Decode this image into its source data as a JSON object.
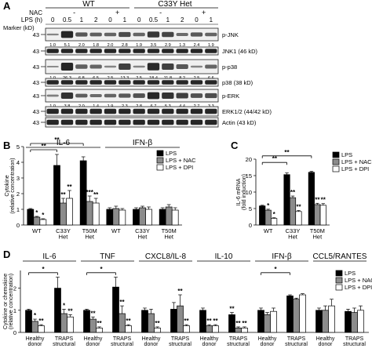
{
  "panels": {
    "a": {
      "letter": "A"
    },
    "b": {
      "letter": "B"
    },
    "c": {
      "letter": "C"
    },
    "d": {
      "letter": "D"
    }
  },
  "blot": {
    "group_wt": "WT",
    "group_het": "C33Y Het",
    "nac_label": "NAC",
    "lps_label": "LPS (h)",
    "marker_label": "Marker (kD)",
    "nac_values": [
      "-",
      "+",
      "-",
      "+"
    ],
    "lps_values": [
      "0",
      "0.5",
      "1",
      "2",
      "0",
      "1",
      "0",
      "0.5",
      "1",
      "2",
      "0",
      "1"
    ],
    "rows": [
      {
        "name": "p-JNK",
        "marker": "43",
        "quant": [
          "1.0",
          "5.1",
          "2.0",
          "1.8",
          "2.0",
          "2.8",
          "1.9",
          "3.5",
          "2.9",
          "1.3",
          "2.4",
          "1.9"
        ]
      },
      {
        "name": "JNK1 (46 kD)",
        "marker": "43",
        "quant": []
      },
      {
        "name": "p-p38",
        "marker": "43",
        "quant": [
          "1.0",
          "26.3",
          "6.8",
          "6.5",
          "2.5",
          "13.3",
          "2.5",
          "18.4",
          "11.8",
          "8.2",
          "2.5",
          "6.6"
        ]
      },
      {
        "name": "p38 (38 kD)",
        "marker": "43",
        "quant": []
      },
      {
        "name": "p-ERK",
        "marker": "43",
        "quant": [
          "1.0",
          "3.8",
          "2.0",
          "1.4",
          "1.9",
          "2.3",
          "2.8",
          "6.7",
          "5.3",
          "4.4",
          "2.7",
          "3.3"
        ]
      },
      {
        "name": "ERK1/2 (44/42 kD)",
        "marker": "43",
        "quant": []
      },
      {
        "name": "Actin (43 kD)",
        "marker": "43",
        "quant": []
      }
    ]
  },
  "chart_data": [
    {
      "type": "bar",
      "panel": "B",
      "ylabel": "Cytokine\n(relative concentration)",
      "ylim": [
        0,
        5
      ],
      "yticks": [
        "0",
        "1",
        "2",
        "3",
        "4",
        "5"
      ],
      "group_titles": [
        "IL-6",
        "IFN-β"
      ],
      "categories": [
        "WT",
        "C33Y\nHet",
        "T50M\nHet",
        "WT",
        "C33Y\nHet",
        "T50M\nHet"
      ],
      "series": [
        {
          "name": "LPS",
          "values": [
            1.0,
            3.8,
            4.1,
            1.0,
            1.0,
            1.0
          ],
          "errors": [
            0.05,
            0.7,
            0.25,
            0.1,
            0.1,
            0.1
          ]
        },
        {
          "name": "LPS + NAC",
          "values": [
            0.5,
            1.4,
            1.5,
            1.05,
            1.1,
            1.15
          ],
          "errors": [
            0.05,
            0.3,
            0.35,
            0.15,
            0.1,
            0.15
          ]
        },
        {
          "name": "LPS + DPI",
          "values": [
            0.35,
            1.7,
            1.4,
            0.95,
            1.0,
            0.95
          ],
          "errors": [
            0.05,
            0.5,
            0.3,
            0.1,
            0.15,
            0.15
          ]
        }
      ],
      "stars": [
        {
          "cat": 0,
          "series": 1,
          "text": "*"
        },
        {
          "cat": 0,
          "series": 2,
          "text": "*"
        },
        {
          "cat": 1,
          "series": 1,
          "text": "**"
        },
        {
          "cat": 1,
          "series": 2,
          "text": "**"
        },
        {
          "cat": 2,
          "series": 1,
          "text": "***"
        },
        {
          "cat": 2,
          "series": 2,
          "text": "**"
        }
      ],
      "brackets": [
        {
          "from": 0,
          "to": 1,
          "text": "**",
          "y": 4.8
        },
        {
          "from": 0,
          "to": 2,
          "text": "**",
          "y": 5.2
        }
      ],
      "legend": [
        "LPS",
        "LPS + NAC",
        "LPS + DPI"
      ]
    },
    {
      "type": "bar",
      "panel": "C",
      "ylabel": "IL-6 mRNA\n(fold induction)",
      "ylim": [
        0,
        20
      ],
      "yticks": [
        "0",
        "5",
        "10",
        "15",
        "20"
      ],
      "categories": [
        "WT",
        "C33Y\nHet",
        "T50M\nHet"
      ],
      "series": [
        {
          "name": "LPS",
          "values": [
            5.8,
            15.3,
            16.0
          ],
          "errors": [
            0.2,
            0.5,
            0.3
          ]
        },
        {
          "name": "LPS + NAC",
          "values": [
            4.5,
            8.3,
            6.2
          ],
          "errors": [
            0.3,
            0.5,
            0.4
          ]
        },
        {
          "name": "LPS + DPI",
          "values": [
            2.0,
            4.1,
            6.0
          ],
          "errors": [
            0.2,
            0.3,
            0.5
          ]
        }
      ],
      "stars": [
        {
          "cat": 0,
          "series": 1,
          "text": "*"
        },
        {
          "cat": 0,
          "series": 2,
          "text": "*"
        },
        {
          "cat": 1,
          "series": 1,
          "text": "**"
        },
        {
          "cat": 1,
          "series": 2,
          "text": "**"
        },
        {
          "cat": 2,
          "series": 1,
          "text": "**"
        },
        {
          "cat": 2,
          "series": 2,
          "text": "**"
        }
      ],
      "brackets": [
        {
          "from": 0,
          "to": 1,
          "text": "**",
          "y": 19.0
        },
        {
          "from": 0,
          "to": 2,
          "text": "**",
          "y": 21.0
        }
      ],
      "legend": [
        "LPS",
        "LPS + NAC",
        "LPS + DPI"
      ]
    },
    {
      "type": "bar",
      "panel": "D",
      "ylabel": "Cytokine or chemokine\n(relative concentration)",
      "ylim": [
        0,
        2.8
      ],
      "yticks": [
        "0",
        "1",
        "2"
      ],
      "group_titles": [
        "IL-6",
        "TNF",
        "CXCL8/IL-8",
        "IL-10",
        "IFN-β",
        "CCL5/RANTES"
      ],
      "categories": [
        "Healthy\ndonor",
        "TRAPS\nstructural",
        "Healthy\ndonor",
        "TRAPS\nstructural",
        "Healthy\ndonor",
        "TRAPS\nstructural",
        "Healthy\ndonor",
        "TRAPS\nstructural",
        "Healthy\ndonor",
        "TRAPS\nstructural",
        "Healthy\ndonor",
        "TRAPS\nstructural"
      ],
      "series": [
        {
          "name": "LPS",
          "values": [
            1.0,
            2.0,
            1.0,
            2.05,
            1.0,
            1.05,
            1.0,
            0.8,
            1.0,
            1.65,
            1.0,
            0.95
          ],
          "errors": [
            0.05,
            0.5,
            0.05,
            0.45,
            0.1,
            0.3,
            0.1,
            0.1,
            0.1,
            0.05,
            0.1,
            0.1
          ]
        },
        {
          "name": "LPS + NAC",
          "values": [
            0.5,
            0.85,
            0.6,
            0.85,
            0.85,
            1.2,
            0.3,
            0.2,
            0.8,
            1.5,
            1.0,
            0.9
          ],
          "errors": [
            0.1,
            0.2,
            0.1,
            0.35,
            0.2,
            0.5,
            0.05,
            0.05,
            0.1,
            0.05,
            0.2,
            0.2
          ]
        },
        {
          "name": "LPS + DPI",
          "values": [
            0.3,
            0.7,
            0.2,
            0.3,
            0.2,
            0.3,
            0.3,
            0.2,
            0.95,
            1.7,
            1.2,
            1.0
          ],
          "errors": [
            0.05,
            0.1,
            0.05,
            0.05,
            0.05,
            0.05,
            0.05,
            0.05,
            0.15,
            0.05,
            0.3,
            0.2
          ]
        }
      ],
      "stars": [
        {
          "cat": 0,
          "series": 1,
          "text": "*"
        },
        {
          "cat": 0,
          "series": 2,
          "text": "**"
        },
        {
          "cat": 1,
          "series": 1,
          "text": "*"
        },
        {
          "cat": 1,
          "series": 2,
          "text": "**"
        },
        {
          "cat": 2,
          "series": 1,
          "text": "**"
        },
        {
          "cat": 2,
          "series": 2,
          "text": "**"
        },
        {
          "cat": 3,
          "series": 1,
          "text": "**"
        },
        {
          "cat": 3,
          "series": 2,
          "text": "**"
        },
        {
          "cat": 4,
          "series": 2,
          "text": "**"
        },
        {
          "cat": 5,
          "series": 1,
          "text": "**"
        },
        {
          "cat": 5,
          "series": 2,
          "text": "**"
        },
        {
          "cat": 6,
          "series": 1,
          "text": "**"
        },
        {
          "cat": 6,
          "series": 2,
          "text": "**"
        },
        {
          "cat": 7,
          "series": 0,
          "text": "**"
        },
        {
          "cat": 7,
          "series": 1,
          "text": "**"
        },
        {
          "cat": 7,
          "series": 2,
          "text": "**"
        }
      ],
      "brackets": [
        {
          "from": 0,
          "to": 1,
          "text": "*",
          "y": 2.7
        },
        {
          "from": 2,
          "to": 3,
          "text": "*",
          "y": 2.7
        },
        {
          "from": 8,
          "to": 9,
          "text": "*",
          "y": 2.7
        }
      ],
      "legend": [
        "LPS",
        "LPS + NAC",
        "LPS + DPI"
      ]
    }
  ],
  "colors": {
    "series": [
      "#000000",
      "#8c8c8c",
      "#ffffff"
    ],
    "band": "#1a1a1a"
  }
}
